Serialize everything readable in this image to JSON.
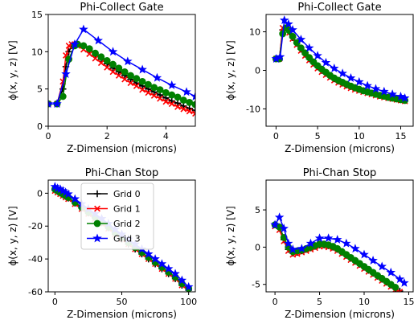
{
  "figure": {
    "background": "#ffffff"
  },
  "series_style": [
    {
      "name": "Grid 0",
      "color": "#000000",
      "marker": "plus"
    },
    {
      "name": "Grid 1",
      "color": "#ff0000",
      "marker": "x"
    },
    {
      "name": "Grid 2",
      "color": "#008000",
      "marker": "circle"
    },
    {
      "name": "Grid 3",
      "color": "#0000ff",
      "marker": "star"
    }
  ],
  "chart_data": [
    {
      "type": "line",
      "title": "Phi-Collect Gate",
      "xlabel": "Z-Dimension (microns)",
      "ylabel": "ϕ(x, y, z) [V]",
      "xlim": [
        0,
        5
      ],
      "ylim": [
        0,
        15
      ],
      "xticks": [
        0,
        2,
        4
      ],
      "yticks": [
        0,
        5,
        10,
        15
      ],
      "grid": false,
      "legend": null,
      "series": [
        {
          "name": "Grid 0",
          "x": [
            0.0,
            0.3,
            0.5,
            0.6,
            0.7,
            0.8,
            0.9,
            1.0,
            1.2,
            1.4,
            1.6,
            1.8,
            2.0,
            2.2,
            2.4,
            2.6,
            2.8,
            3.0,
            3.2,
            3.4,
            3.6,
            3.8,
            4.0,
            4.2,
            4.4,
            4.6,
            4.8,
            5.0
          ],
          "y": [
            3.0,
            3.0,
            5.0,
            8.0,
            10.0,
            10.8,
            11.0,
            11.0,
            10.8,
            10.3,
            9.6,
            9.0,
            8.4,
            7.8,
            7.3,
            6.8,
            6.3,
            5.8,
            5.4,
            5.0,
            4.6,
            4.2,
            3.8,
            3.4,
            3.1,
            2.7,
            2.4,
            2.1
          ]
        },
        {
          "name": "Grid 1",
          "x": [
            0.0,
            0.3,
            0.5,
            0.6,
            0.7,
            0.8,
            0.9,
            1.0,
            1.2,
            1.4,
            1.6,
            1.8,
            2.0,
            2.2,
            2.4,
            2.6,
            2.8,
            3.0,
            3.2,
            3.4,
            3.6,
            3.8,
            4.0,
            4.2,
            4.4,
            4.6,
            4.8,
            5.0
          ],
          "y": [
            3.0,
            3.0,
            6.0,
            9.5,
            10.8,
            11.0,
            11.0,
            10.8,
            10.3,
            9.7,
            9.1,
            8.5,
            7.9,
            7.3,
            6.8,
            6.3,
            5.8,
            5.4,
            4.9,
            4.5,
            4.1,
            3.7,
            3.3,
            3.0,
            2.6,
            2.3,
            2.0,
            1.7
          ]
        },
        {
          "name": "Grid 2",
          "x": [
            0.0,
            0.3,
            0.5,
            0.7,
            0.9,
            1.0,
            1.2,
            1.4,
            1.6,
            1.8,
            2.0,
            2.2,
            2.4,
            2.6,
            2.8,
            3.0,
            3.2,
            3.4,
            3.6,
            3.8,
            4.0,
            4.2,
            4.4,
            4.6,
            4.8,
            5.0
          ],
          "y": [
            3.0,
            3.0,
            4.0,
            9.0,
            10.8,
            11.0,
            10.8,
            10.4,
            9.8,
            9.3,
            8.8,
            8.3,
            7.8,
            7.3,
            6.8,
            6.4,
            6.0,
            5.6,
            5.2,
            4.9,
            4.5,
            4.2,
            3.9,
            3.5,
            3.2,
            2.9
          ]
        },
        {
          "name": "Grid 3",
          "x": [
            0.0,
            0.3,
            0.6,
            0.9,
            1.2,
            1.7,
            2.2,
            2.7,
            3.2,
            3.7,
            4.2,
            4.7,
            5.0
          ],
          "y": [
            3.0,
            3.0,
            7.0,
            11.0,
            13.0,
            11.5,
            10.0,
            8.7,
            7.6,
            6.5,
            5.5,
            4.6,
            4.0
          ]
        }
      ]
    },
    {
      "type": "line",
      "title": "Phi-Collect Gate",
      "xlabel": "Z-Dimension (microns)",
      "ylabel": "ϕ(x, y, z) [V]",
      "xlim": [
        -1.2,
        16.5
      ],
      "ylim": [
        -14.5,
        14.5
      ],
      "xticks": [
        0,
        5,
        10,
        15
      ],
      "yticks": [
        -10,
        0,
        10
      ],
      "grid": false,
      "legend": null,
      "series": [
        {
          "name": "Grid 0",
          "x": [
            0,
            0.4,
            0.8,
            1.2,
            1.6,
            2.0,
            2.5,
            3.0,
            3.5,
            4.0,
            4.5,
            5.0,
            5.5,
            6.0,
            6.5,
            7.0,
            7.5,
            8.0,
            8.5,
            9.0,
            9.5,
            10.0,
            10.5,
            11.0,
            11.5,
            12.0,
            12.5,
            13.0,
            13.5,
            14.0,
            14.5,
            15.0,
            15.5
          ],
          "y": [
            3.0,
            3.0,
            10.5,
            11.0,
            10.0,
            8.5,
            7.0,
            5.5,
            4.2,
            3.0,
            1.9,
            0.9,
            0.0,
            -0.8,
            -1.5,
            -2.2,
            -2.8,
            -3.3,
            -3.8,
            -4.2,
            -4.6,
            -5.0,
            -5.3,
            -5.6,
            -5.9,
            -6.2,
            -6.5,
            -6.7,
            -7.0,
            -7.2,
            -7.4,
            -7.6,
            -7.8
          ]
        },
        {
          "name": "Grid 1",
          "x": [
            0,
            0.4,
            0.8,
            1.2,
            1.6,
            2.0,
            2.5,
            3.0,
            3.5,
            4.0,
            4.5,
            5.0,
            5.5,
            6.0,
            6.5,
            7.0,
            7.5,
            8.0,
            8.5,
            9.0,
            9.5,
            10.0,
            10.5,
            11.0,
            11.5,
            12.0,
            12.5,
            13.0,
            13.5,
            14.0,
            14.5,
            15.0,
            15.5
          ],
          "y": [
            3.0,
            3.0,
            11.0,
            11.0,
            9.8,
            8.2,
            6.6,
            5.1,
            3.8,
            2.6,
            1.5,
            0.5,
            -0.4,
            -1.2,
            -1.9,
            -2.6,
            -3.2,
            -3.7,
            -4.2,
            -4.6,
            -5.0,
            -5.3,
            -5.6,
            -5.9,
            -6.2,
            -6.5,
            -6.8,
            -7.0,
            -7.2,
            -7.4,
            -7.6,
            -7.8,
            -8.0
          ]
        },
        {
          "name": "Grid 2",
          "x": [
            0,
            0.4,
            0.8,
            1.2,
            1.6,
            2.0,
            2.5,
            3.0,
            3.5,
            4.0,
            4.5,
            5.0,
            5.5,
            6.0,
            6.5,
            7.0,
            7.5,
            8.0,
            8.5,
            9.0,
            9.5,
            10.0,
            10.5,
            11.0,
            11.5,
            12.0,
            12.5,
            13.0,
            13.5,
            14.0,
            14.5,
            15.0,
            15.5
          ],
          "y": [
            3.0,
            3.0,
            9.5,
            11.0,
            10.3,
            8.8,
            7.2,
            5.8,
            4.5,
            3.3,
            2.2,
            1.2,
            0.3,
            -0.5,
            -1.3,
            -2.0,
            -2.6,
            -3.1,
            -3.6,
            -4.1,
            -4.5,
            -4.9,
            -5.3,
            -5.6,
            -5.9,
            -6.2,
            -6.5,
            -6.7,
            -7.0,
            -7.2,
            -7.4,
            -7.6,
            -7.8
          ]
        },
        {
          "name": "Grid 3",
          "x": [
            0,
            0.5,
            1.0,
            1.5,
            2.0,
            3.0,
            4.0,
            5.0,
            6.0,
            7.0,
            8.0,
            9.0,
            10.0,
            11.0,
            12.0,
            13.0,
            14.0,
            15.0,
            15.5
          ],
          "y": [
            3.0,
            3.5,
            13.0,
            12.0,
            10.5,
            8.0,
            5.8,
            3.8,
            2.0,
            0.5,
            -0.8,
            -2.0,
            -3.0,
            -4.0,
            -4.8,
            -5.5,
            -6.2,
            -6.8,
            -7.2
          ]
        }
      ]
    },
    {
      "type": "line",
      "title": "Phi-Chan Stop",
      "xlabel": "Z-Dimension (microns)",
      "ylabel": "ϕ(x, y, z) [V]",
      "xlim": [
        -5,
        105
      ],
      "ylim": [
        -60,
        8
      ],
      "xticks": [
        0,
        50,
        100
      ],
      "yticks": [
        -60,
        -40,
        -20,
        0
      ],
      "grid": false,
      "legend": "top-right",
      "series": [
        {
          "name": "Grid 0",
          "x": [
            0,
            2,
            4,
            6,
            8,
            10,
            15,
            20,
            25,
            30,
            35,
            40,
            45,
            50,
            55,
            60,
            65,
            70,
            75,
            80,
            85,
            90,
            95,
            100
          ],
          "y": [
            2,
            1,
            0,
            -1,
            -2,
            -3,
            -6,
            -9,
            -12,
            -15,
            -18,
            -21,
            -25,
            -28,
            -31,
            -34,
            -37,
            -40,
            -43,
            -46,
            -49,
            -52,
            -56,
            -59
          ]
        },
        {
          "name": "Grid 1",
          "x": [
            0,
            2,
            4,
            6,
            8,
            10,
            15,
            20,
            25,
            30,
            35,
            40,
            45,
            50,
            55,
            60,
            65,
            70,
            75,
            80,
            85,
            90,
            95,
            100
          ],
          "y": [
            1.5,
            0.5,
            -0.5,
            -1.5,
            -2.5,
            -3.5,
            -6.5,
            -9.5,
            -12.5,
            -15.5,
            -18.5,
            -21.5,
            -25,
            -28,
            -31,
            -34,
            -37,
            -40,
            -43,
            -46,
            -49,
            -52,
            -56,
            -59
          ]
        },
        {
          "name": "Grid 2",
          "x": [
            0,
            2,
            4,
            6,
            8,
            10,
            15,
            20,
            25,
            30,
            35,
            40,
            45,
            50,
            55,
            60,
            65,
            70,
            75,
            80,
            85,
            90,
            95,
            100
          ],
          "y": [
            2.5,
            1.5,
            0.5,
            -0.5,
            -1.5,
            -2.5,
            -5.5,
            -8.5,
            -11.5,
            -14.5,
            -17.5,
            -20.5,
            -24,
            -27,
            -30,
            -33,
            -36,
            -39,
            -42,
            -45,
            -48,
            -51,
            -55,
            -58
          ]
        },
        {
          "name": "Grid 3",
          "x": [
            0,
            2,
            4,
            6,
            8,
            10,
            15,
            20,
            25,
            30,
            35,
            40,
            45,
            50,
            55,
            60,
            65,
            70,
            75,
            80,
            85,
            90,
            95,
            100
          ],
          "y": [
            4,
            3,
            2.5,
            1.5,
            0.5,
            -0.5,
            -3.5,
            -6.5,
            -9.5,
            -12.5,
            -15.5,
            -18.5,
            -22,
            -25,
            -28,
            -31,
            -34,
            -37,
            -40,
            -43,
            -46,
            -49,
            -53,
            -57
          ]
        }
      ]
    },
    {
      "type": "line",
      "title": "Phi-Chan Stop",
      "xlabel": "Z-Dimension (microns)",
      "ylabel": "ϕ(x, y, z) [V]",
      "xlim": [
        -1,
        15.5
      ],
      "ylim": [
        -6,
        9
      ],
      "xticks": [
        0,
        5,
        10,
        15
      ],
      "yticks": [
        -5,
        0,
        5
      ],
      "grid": false,
      "legend": null,
      "series": [
        {
          "name": "Grid 0",
          "x": [
            0,
            0.5,
            1.0,
            1.5,
            2.0,
            2.5,
            3.0,
            3.5,
            4.0,
            4.5,
            5.0,
            5.5,
            6.0,
            6.5,
            7.0,
            7.5,
            8.0,
            8.5,
            9.0,
            9.5,
            10.0,
            10.5,
            11.0,
            11.5,
            12.0,
            12.5,
            13.0,
            13.5,
            14.0
          ],
          "y": [
            3.0,
            2.5,
            1.0,
            -0.3,
            -0.8,
            -0.7,
            -0.5,
            -0.3,
            -0.1,
            0.1,
            0.3,
            0.3,
            0.2,
            0.0,
            -0.3,
            -0.7,
            -1.1,
            -1.5,
            -1.9,
            -2.3,
            -2.7,
            -3.1,
            -3.5,
            -3.9,
            -4.3,
            -4.7,
            -5.1,
            -5.5,
            -5.9
          ]
        },
        {
          "name": "Grid 1",
          "x": [
            0,
            0.5,
            1.0,
            1.5,
            2.0,
            2.5,
            3.0,
            3.5,
            4.0,
            4.5,
            5.0,
            5.5,
            6.0,
            6.5,
            7.0,
            7.5,
            8.0,
            8.5,
            9.0,
            9.5,
            10.0,
            10.5,
            11.0,
            11.5,
            12.0,
            12.5,
            13.0,
            13.5,
            14.0
          ],
          "y": [
            2.8,
            2.3,
            0.8,
            -0.5,
            -1.0,
            -0.9,
            -0.7,
            -0.5,
            -0.3,
            -0.1,
            0.1,
            0.1,
            0.0,
            -0.2,
            -0.5,
            -0.9,
            -1.3,
            -1.7,
            -2.1,
            -2.5,
            -2.9,
            -3.3,
            -3.7,
            -4.1,
            -4.5,
            -4.9,
            -5.3,
            -5.7,
            -6.0
          ]
        },
        {
          "name": "Grid 2",
          "x": [
            0,
            0.5,
            1.0,
            1.5,
            2.0,
            2.5,
            3.0,
            3.5,
            4.0,
            4.5,
            5.0,
            5.5,
            6.0,
            6.5,
            7.0,
            7.5,
            8.0,
            8.5,
            9.0,
            9.5,
            10.0,
            10.5,
            11.0,
            11.5,
            12.0,
            12.5,
            13.0,
            13.5
          ],
          "y": [
            3.0,
            2.7,
            1.3,
            0.0,
            -0.6,
            -0.5,
            -0.4,
            -0.2,
            0.0,
            0.2,
            0.4,
            0.4,
            0.3,
            0.1,
            -0.2,
            -0.6,
            -1.0,
            -1.4,
            -1.8,
            -2.2,
            -2.6,
            -3.0,
            -3.4,
            -3.8,
            -4.2,
            -4.6,
            -5.0,
            -5.4
          ]
        },
        {
          "name": "Grid 3",
          "x": [
            0,
            0.5,
            1.0,
            1.5,
            2.0,
            3.0,
            4.0,
            5.0,
            6.0,
            7.0,
            8.0,
            9.0,
            10.0,
            11.0,
            12.0,
            13.0,
            14.0,
            14.5
          ],
          "y": [
            3.0,
            4.0,
            2.5,
            0.5,
            -0.3,
            -0.2,
            0.5,
            1.2,
            1.2,
            1.0,
            0.5,
            -0.2,
            -1.0,
            -1.8,
            -2.6,
            -3.4,
            -4.3,
            -4.8
          ]
        }
      ]
    }
  ]
}
